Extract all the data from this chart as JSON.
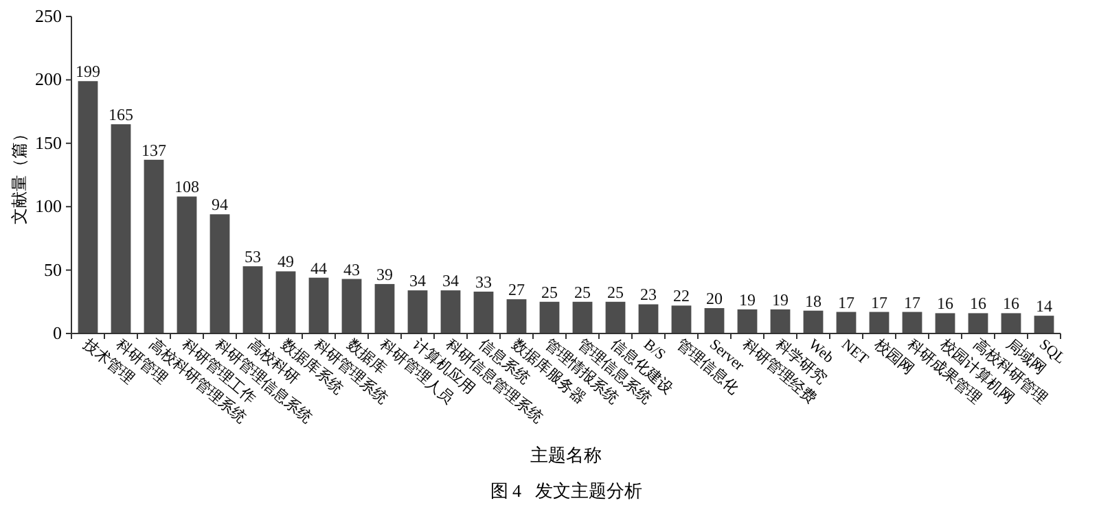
{
  "chart_data": {
    "type": "bar",
    "xlabel": "主题名称",
    "ylabel": "文献量（篇）",
    "categories": [
      "技术管理",
      "科研管理",
      "高校科研管理系统",
      "科研管理工作",
      "科研管理信息系统",
      "高校科研",
      "数据库系统",
      "科研管理系统",
      "数据库",
      "科研管理人员",
      "计算机应用",
      "科研信息管理系统",
      "信息系统",
      "数据库服务器",
      "管理情报系统",
      "管理信息系统",
      "信息化建设",
      "B/S",
      "管理信息化",
      "Server",
      "科研管理经费",
      "科学研究",
      "Web",
      "NET",
      "校园网",
      "科研成果管理",
      "校园计算机网",
      "高校科研管理",
      "局域网",
      "SQL"
    ],
    "values": [
      199,
      165,
      137,
      108,
      94,
      53,
      49,
      44,
      43,
      39,
      34,
      34,
      33,
      27,
      25,
      25,
      25,
      23,
      22,
      20,
      19,
      19,
      18,
      17,
      17,
      17,
      16,
      16,
      16,
      14
    ],
    "color": "#4d4d4d",
    "ylim": [
      0,
      250
    ],
    "yticks": [
      0,
      50,
      100,
      150,
      200,
      250
    ],
    "data_labels": true,
    "grid": false,
    "annotations": [
      "图 4   发文主题分析"
    ]
  }
}
